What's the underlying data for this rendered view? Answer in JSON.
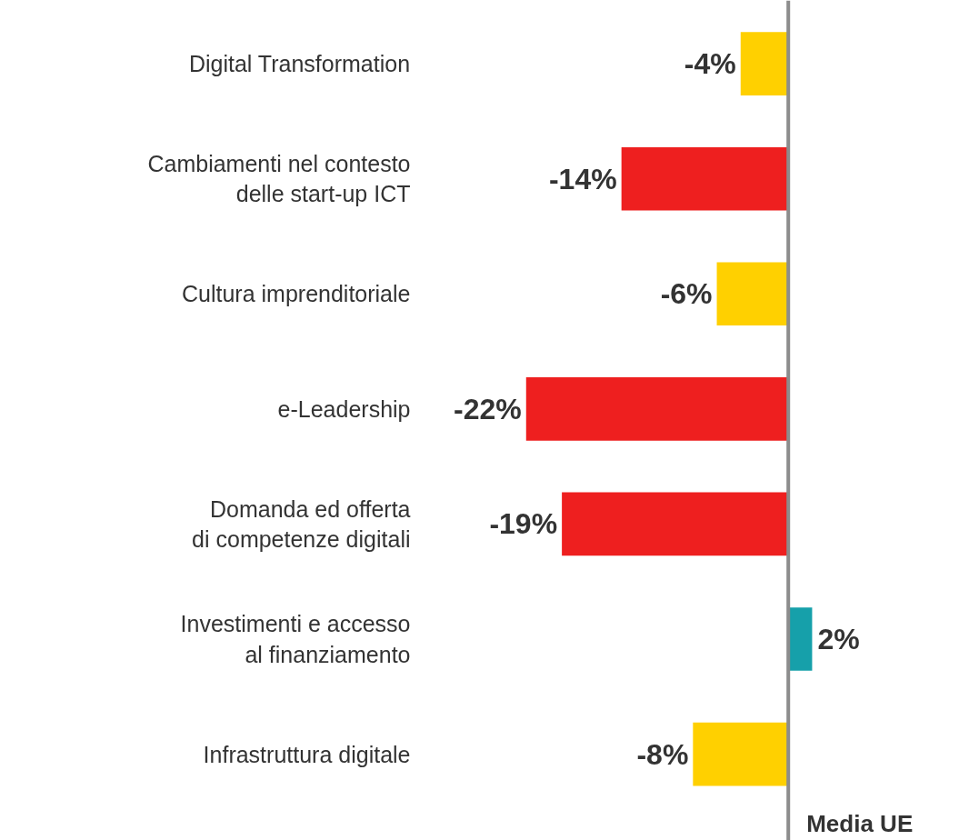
{
  "chart_data": {
    "type": "bar",
    "orientation": "horizontal",
    "grid": false,
    "tick_labels": "y",
    "value_labels": [
      "-4%",
      "-14%",
      "-6%",
      "-22%",
      "-19%",
      "2%",
      "-8%"
    ],
    "categories": [
      "Digital Transformation",
      "Cambiamenti nel contesto\ndelle start-up ICT",
      "Cultura imprenditoriale",
      "e-Leadership",
      "Domanda ed offerta\ndi competenze digitali",
      "Investimenti e accesso\nal finanziamento",
      "Infrastruttura digitale"
    ],
    "values": [
      -4,
      -14,
      -6,
      -22,
      -19,
      2,
      -8
    ],
    "colors": [
      "#ffd000",
      "#ee1f1f",
      "#ffd000",
      "#ee1f1f",
      "#ee1f1f",
      "#16a0aa",
      "#ffd000"
    ],
    "annotations": [
      "Media UE"
    ]
  }
}
